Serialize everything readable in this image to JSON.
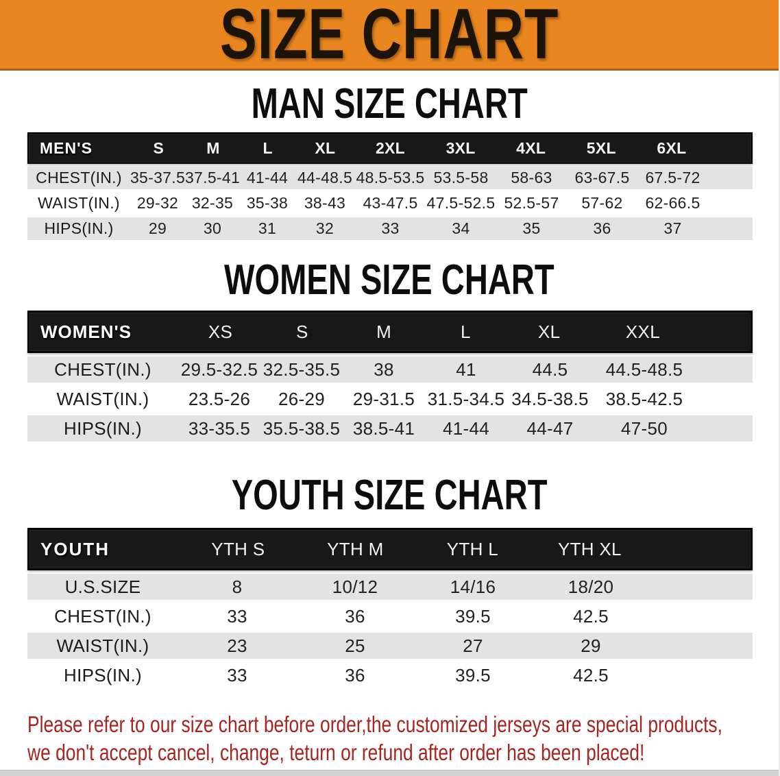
{
  "banner": {
    "title": "SIZE CHART"
  },
  "colors": {
    "banner_bg": "#E9861F",
    "banner_text": "#1c1408",
    "header_bar_bg": "#181818",
    "row_shade": "#E3E3E3",
    "notice_color": "#A8241E"
  },
  "sections": [
    {
      "title": "MAN SIZE CHART",
      "table": {
        "header_label": "MEN'S",
        "columns": [
          "S",
          "M",
          "L",
          "XL",
          "2XL",
          "3XL",
          "4XL",
          "5XL",
          "6XL"
        ],
        "rows": [
          {
            "label": "CHEST(IN.)",
            "values": [
              "35-37.5",
              "37.5-41",
              "41-44",
              "44-48.5",
              "48.5-53.5",
              "53.5-58",
              "58-63",
              "63-67.5",
              "67.5-72"
            ]
          },
          {
            "label": "WAIST(IN.)",
            "values": [
              "29-32",
              "32-35",
              "35-38",
              "38-43",
              "43-47.5",
              "47.5-52.5",
              "52.5-57",
              "57-62",
              "62-66.5"
            ]
          },
          {
            "label": "HIPS(IN.)",
            "values": [
              "29",
              "30",
              "31",
              "32",
              "33",
              "34",
              "35",
              "36",
              "37"
            ]
          }
        ]
      }
    },
    {
      "title": "WOMEN SIZE CHART",
      "table": {
        "header_label": "WOMEN'S",
        "columns": [
          "XS",
          "S",
          "M",
          "L",
          "XL",
          "XXL"
        ],
        "rows": [
          {
            "label": "CHEST(IN.)",
            "values": [
              "29.5-32.5",
              "32.5-35.5",
              "38",
              "41",
              "44.5",
              "44.5-48.5"
            ]
          },
          {
            "label": "WAIST(IN.)",
            "values": [
              "23.5-26",
              "26-29",
              "29-31.5",
              "31.5-34.5",
              "34.5-38.5",
              "38.5-42.5"
            ]
          },
          {
            "label": "HIPS(IN.)",
            "values": [
              "33-35.5",
              "35.5-38.5",
              "38.5-41",
              "41-44",
              "44-47",
              "47-50"
            ]
          }
        ]
      }
    },
    {
      "title": "YOUTH SIZE CHART",
      "table": {
        "header_label": "YOUTH",
        "columns": [
          "YTH S",
          "YTH M",
          "YTH L",
          "YTH XL"
        ],
        "rows": [
          {
            "label": "U.S.SIZE",
            "values": [
              "8",
              "10/12",
              "14/16",
              "18/20"
            ]
          },
          {
            "label": "CHEST(IN.)",
            "values": [
              "33",
              "36",
              "39.5",
              "42.5"
            ]
          },
          {
            "label": "WAIST(IN.)",
            "values": [
              "23",
              "25",
              "27",
              "29"
            ]
          },
          {
            "label": "HIPS(IN.)",
            "values": [
              "33",
              "36",
              "39.5",
              "42.5"
            ]
          }
        ]
      }
    }
  ],
  "footer": {
    "line1": "Please refer to our size chart before order,the customized jerseys are special products,",
    "line2": "we don't accept cancel, change, teturn or refund after order has been placed!"
  }
}
